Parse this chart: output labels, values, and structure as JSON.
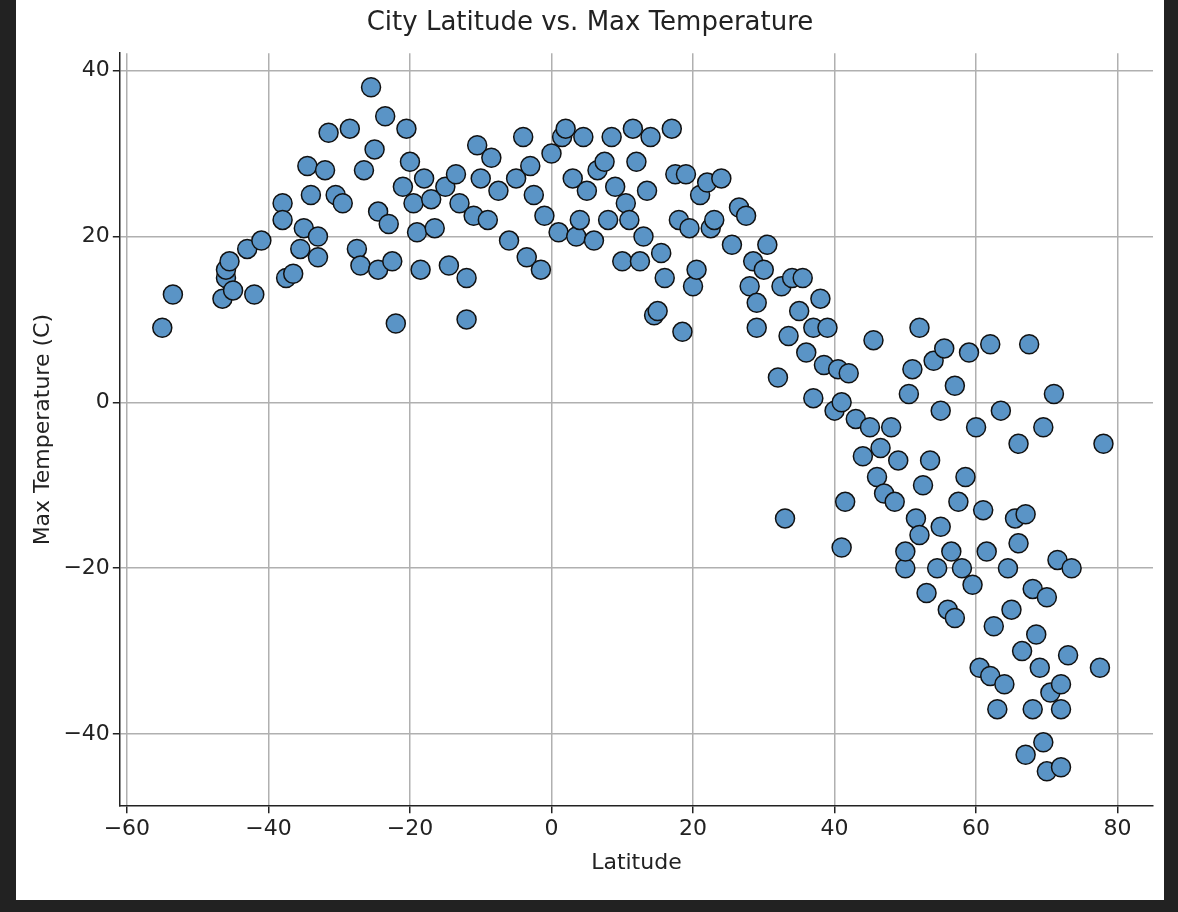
{
  "chart_data": {
    "type": "scatter",
    "title": "City Latitude vs. Max Temperature",
    "xlabel": "Latitude",
    "ylabel": "Max Temperature (C)",
    "xlim": [
      -61,
      85
    ],
    "ylim": [
      -48.7,
      42.1
    ],
    "xticks": [
      {
        "value": -60,
        "label": "−60"
      },
      {
        "value": -40,
        "label": "−40"
      },
      {
        "value": -20,
        "label": "−20"
      },
      0,
      20,
      40,
      60,
      80
    ],
    "yticks": [
      {
        "value": -40,
        "label": "−40"
      },
      {
        "value": -20,
        "label": "−20"
      },
      0,
      20,
      40
    ],
    "grid": true,
    "marker": "circle",
    "series": [
      {
        "color": "#5a94c6",
        "x": [
          -55,
          -53.5,
          -46.5,
          -46,
          -46,
          -45.5,
          -45,
          -43,
          -42,
          -41,
          -38,
          -38,
          -37.5,
          -36.5,
          -35.5,
          -35,
          -34.5,
          -34,
          -33,
          -33,
          -32,
          -31.5,
          -30.5,
          -29.5,
          -28.5,
          -27.5,
          -27,
          -26.5,
          -25.5,
          -25,
          -24.5,
          -24.5,
          -23.5,
          -23,
          -22.5,
          -22,
          -21,
          -20.5,
          -20,
          -19.5,
          -19,
          -18.5,
          -18,
          -17,
          -16.5,
          -15,
          -14.5,
          -13.5,
          -13,
          -12,
          -12,
          -11,
          -10.5,
          -10,
          -9,
          -8.5,
          -7.5,
          -6,
          -5,
          -4,
          -3.5,
          -3,
          -2.5,
          -1.5,
          -1,
          0,
          1,
          1.5,
          2,
          3,
          3.5,
          4,
          4.5,
          5,
          6,
          6.5,
          7.5,
          8,
          8.5,
          9,
          10,
          10.5,
          11,
          11.5,
          12,
          12.5,
          13,
          13.5,
          14,
          14.5,
          15,
          15.5,
          16,
          17,
          17.5,
          18,
          18.5,
          19,
          19.5,
          20,
          20.5,
          21,
          22,
          22.5,
          23,
          24,
          25.5,
          26.5,
          27.5,
          28,
          28.5,
          29,
          29,
          30,
          30.5,
          32,
          32.5,
          33,
          33.5,
          34,
          35,
          35.5,
          36,
          37,
          37,
          38,
          38.5,
          39,
          40,
          40.5,
          41,
          41,
          41.5,
          42,
          43,
          44,
          45,
          45.5,
          46,
          46.5,
          47,
          48,
          48.5,
          49,
          50,
          50,
          50.5,
          51,
          51.5,
          52,
          52,
          52.5,
          53,
          53.5,
          54,
          54.5,
          55,
          55,
          55.5,
          56,
          56.5,
          57,
          57,
          57.5,
          58,
          58.5,
          59,
          59.5,
          60,
          60.5,
          61,
          61.5,
          62,
          62,
          62.5,
          63,
          63.5,
          64,
          64.5,
          65,
          65.5,
          66,
          66,
          66.5,
          67,
          67,
          67.5,
          68,
          68,
          68.5,
          69,
          69.5,
          69.5,
          70,
          70,
          70.5,
          71,
          71.5,
          72,
          72,
          72,
          73,
          73.5,
          77.5,
          78
        ],
        "values": [
          9,
          13,
          12.5,
          15,
          16,
          17,
          13.5,
          18.5,
          13,
          19.5,
          24,
          22,
          15,
          15.5,
          18.5,
          21,
          28.5,
          25,
          20,
          17.5,
          28,
          32.5,
          25,
          24,
          33,
          18.5,
          16.5,
          28,
          38,
          30.5,
          23,
          16,
          34.5,
          21.5,
          17,
          9.5,
          26,
          33,
          29,
          24,
          20.5,
          16,
          27,
          24.5,
          21,
          26,
          16.5,
          27.5,
          24,
          15,
          10,
          22.5,
          31,
          27,
          22,
          29.5,
          25.5,
          19.5,
          27,
          32,
          17.5,
          28.5,
          25,
          16,
          22.5,
          30,
          20.5,
          32,
          33,
          27,
          20,
          22,
          32,
          25.5,
          19.5,
          28,
          29,
          22,
          32,
          26,
          17,
          24,
          22,
          33,
          29,
          17,
          20,
          25.5,
          32,
          10.5,
          11,
          18,
          15,
          33,
          27.5,
          22,
          8.5,
          27.5,
          21,
          14,
          16,
          25,
          26.5,
          21,
          22,
          27,
          19,
          23.5,
          22.5,
          14,
          17,
          12,
          9,
          16,
          19,
          3,
          14,
          -14,
          8,
          15,
          11,
          15,
          6,
          9,
          0.5,
          12.5,
          4.5,
          9,
          -1,
          4,
          0,
          -17.5,
          -12,
          3.5,
          -2,
          -6.5,
          -3,
          7.5,
          -9,
          -5.5,
          -11,
          -3,
          -12,
          -7,
          -20,
          -18,
          1,
          4,
          -14,
          9,
          -16,
          -10,
          -23,
          -7,
          5,
          -20,
          -15,
          -1,
          6.5,
          -25,
          -18,
          2,
          -26,
          -12,
          -20,
          -9,
          6,
          -22,
          -3,
          -32,
          -13,
          -18,
          7,
          -33,
          -27,
          -37,
          -1,
          -34,
          -20,
          -25,
          -14,
          -5,
          -17,
          -30,
          -42.5,
          -13.5,
          7,
          -22.5,
          -37,
          -28,
          -32,
          -3,
          -41,
          -23.5,
          -44.5,
          -35,
          1,
          -19,
          -37,
          -44,
          -34,
          -30.5,
          -20,
          -32,
          -5
        ]
      }
    ]
  }
}
